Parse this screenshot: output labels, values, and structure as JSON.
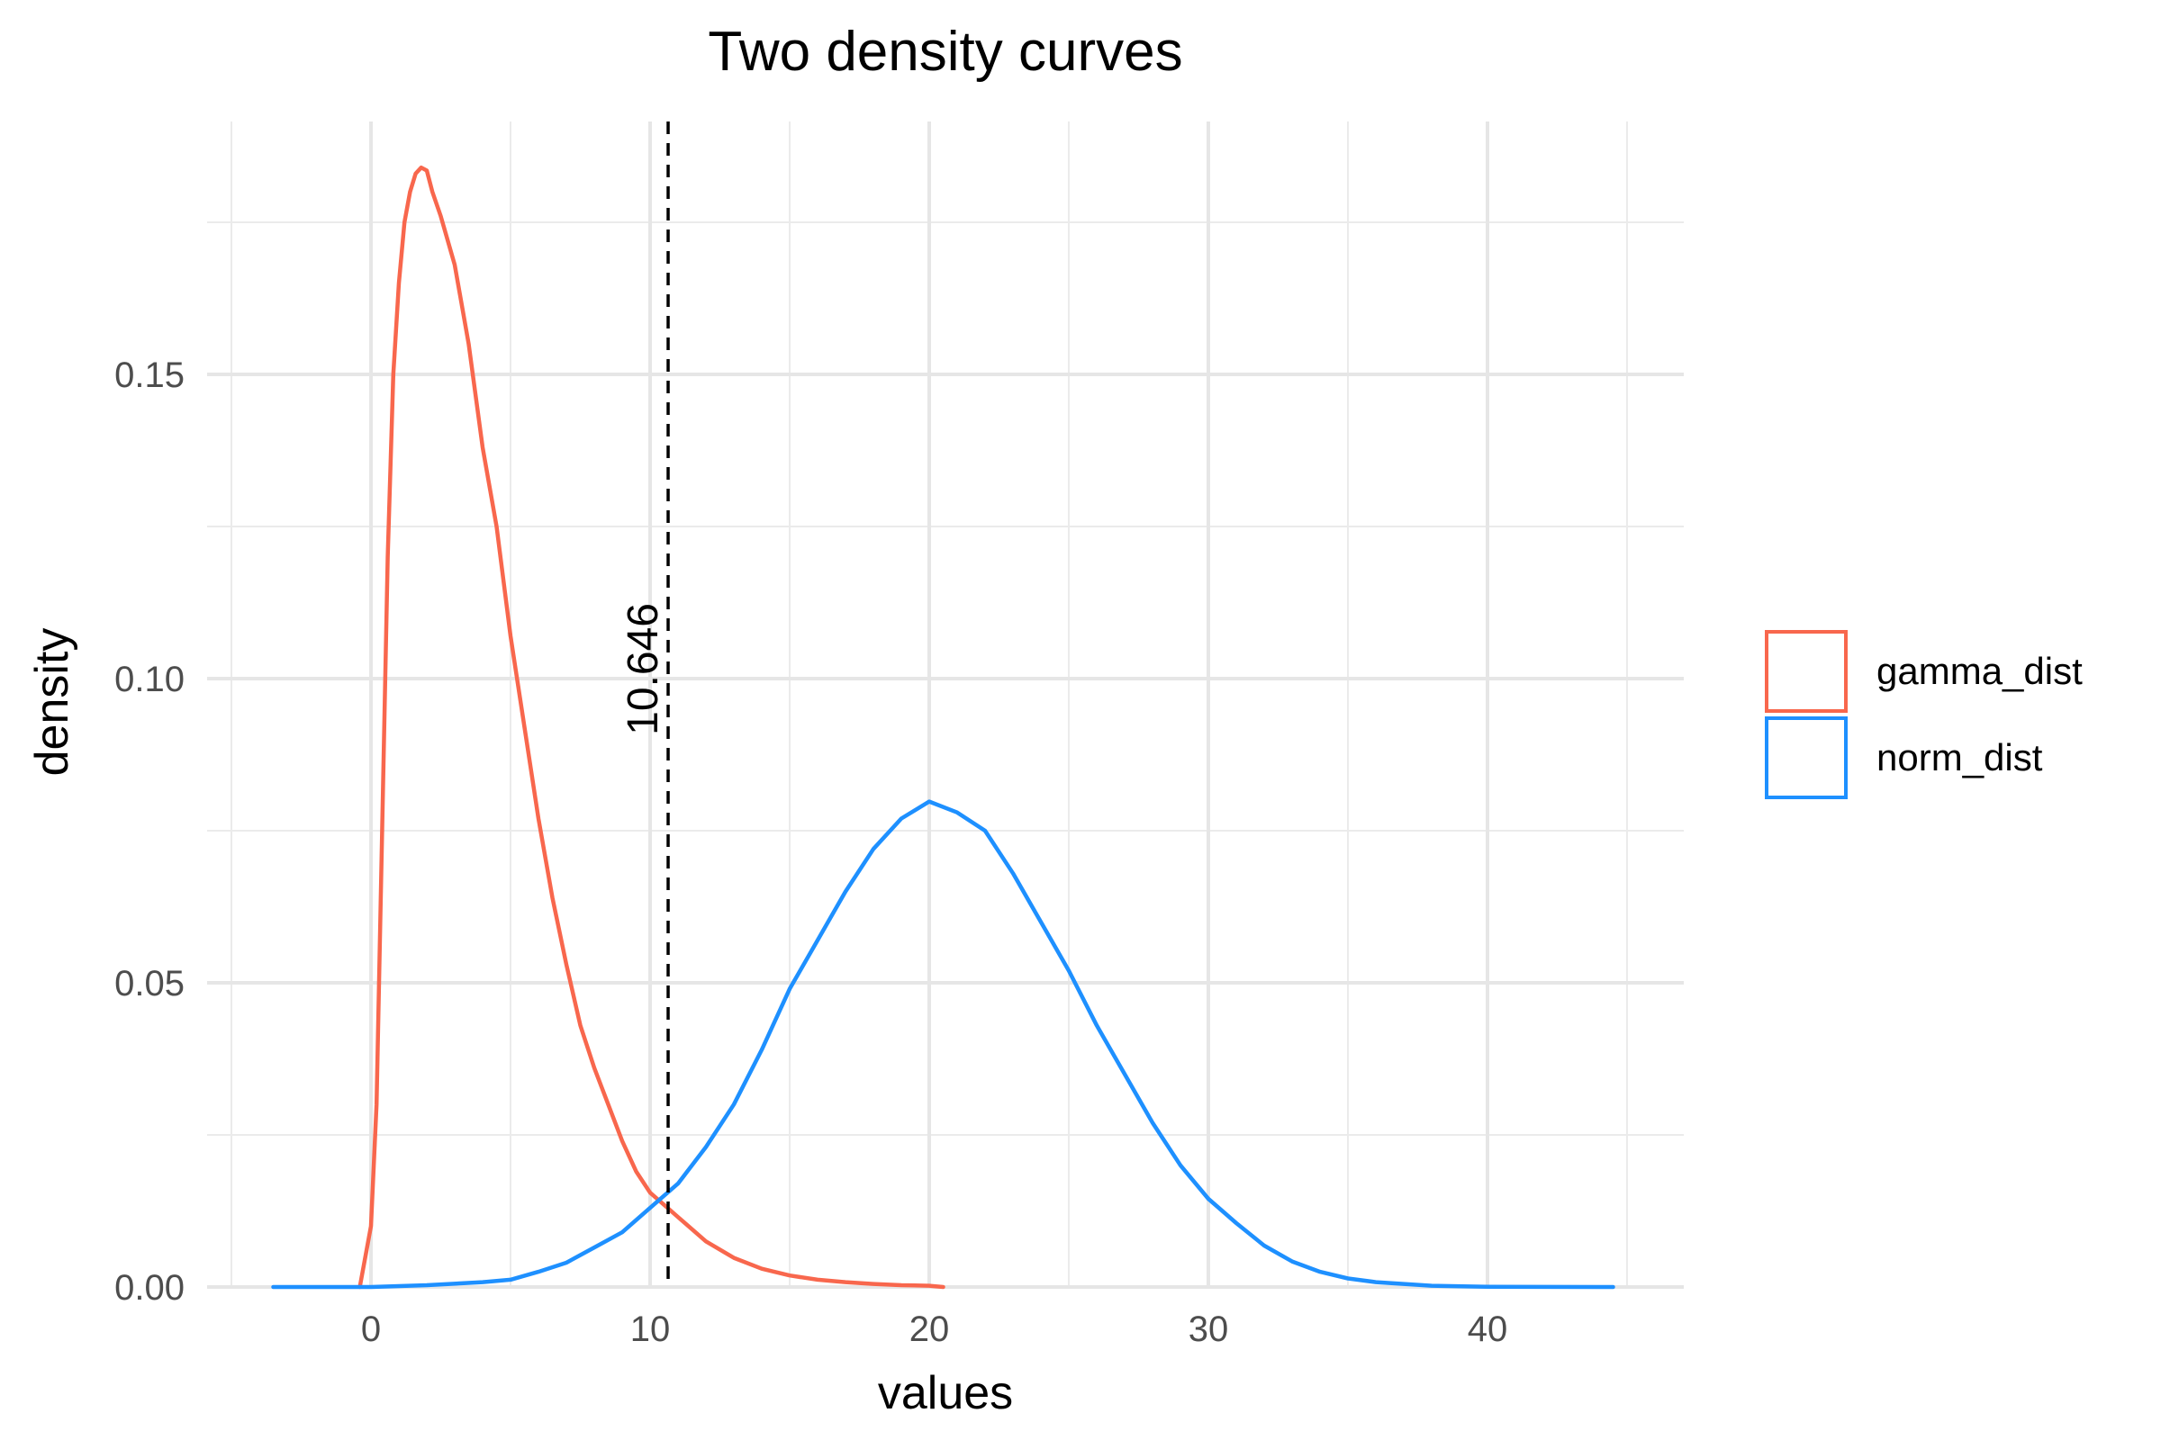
{
  "chart_data": {
    "type": "line",
    "title": "Two density curves",
    "xlabel": "values",
    "ylabel": "density",
    "xlim": [
      -5,
      45
    ],
    "ylim": [
      0,
      0.19
    ],
    "x_ticks": [
      0,
      10,
      20,
      30,
      40
    ],
    "x_tick_labels": [
      "0",
      "10",
      "20",
      "30",
      "40"
    ],
    "y_ticks": [
      0,
      0.05,
      0.1,
      0.15
    ],
    "y_tick_labels": [
      "0.00",
      "0.05",
      "0.10",
      "0.15"
    ],
    "grid": true,
    "legend_position": "right",
    "reference_line": {
      "x": 10.646,
      "label": "10.646",
      "style": "dashed",
      "color": "#000000"
    },
    "series": [
      {
        "name": "gamma_dist",
        "color": "#f8674d",
        "x": [
          -0.4,
          0,
          0.2,
          0.4,
          0.6,
          0.8,
          1.0,
          1.2,
          1.4,
          1.6,
          1.8,
          2.0,
          2.2,
          2.5,
          3.0,
          3.5,
          4.0,
          4.5,
          5.0,
          5.5,
          6.0,
          6.5,
          7.0,
          7.5,
          8.0,
          8.5,
          9.0,
          9.5,
          10.0,
          10.5,
          11.0,
          12.0,
          13.0,
          14.0,
          15.0,
          16.0,
          17.0,
          18.0,
          19.0,
          20.0,
          20.5
        ],
        "y": [
          0.0,
          0.01,
          0.03,
          0.075,
          0.12,
          0.15,
          0.165,
          0.175,
          0.18,
          0.183,
          0.184,
          0.1835,
          0.18,
          0.176,
          0.168,
          0.155,
          0.138,
          0.125,
          0.107,
          0.092,
          0.077,
          0.064,
          0.053,
          0.043,
          0.036,
          0.03,
          0.024,
          0.019,
          0.0155,
          0.0135,
          0.0115,
          0.0075,
          0.0048,
          0.003,
          0.0019,
          0.0012,
          0.0008,
          0.0005,
          0.0003,
          0.0002,
          0.0
        ]
      },
      {
        "name": "norm_dist",
        "color": "#1e90ff",
        "x": [
          -3.5,
          0,
          2,
          4,
          5,
          6,
          7,
          8,
          9,
          10,
          11,
          12,
          13,
          14,
          15,
          16,
          17,
          18,
          19,
          20,
          21,
          22,
          23,
          24,
          25,
          26,
          27,
          28,
          29,
          30,
          31,
          32,
          33,
          34,
          35,
          36,
          38,
          40,
          44.5
        ],
        "y": [
          0.0,
          0.0,
          0.0003,
          0.0008,
          0.0012,
          0.0025,
          0.004,
          0.0065,
          0.009,
          0.013,
          0.017,
          0.023,
          0.03,
          0.039,
          0.049,
          0.057,
          0.065,
          0.072,
          0.077,
          0.0798,
          0.078,
          0.075,
          0.068,
          0.06,
          0.052,
          0.043,
          0.035,
          0.027,
          0.02,
          0.0145,
          0.0105,
          0.0068,
          0.0042,
          0.0025,
          0.0014,
          0.0008,
          0.0002,
          5e-05,
          0.0
        ]
      }
    ]
  }
}
